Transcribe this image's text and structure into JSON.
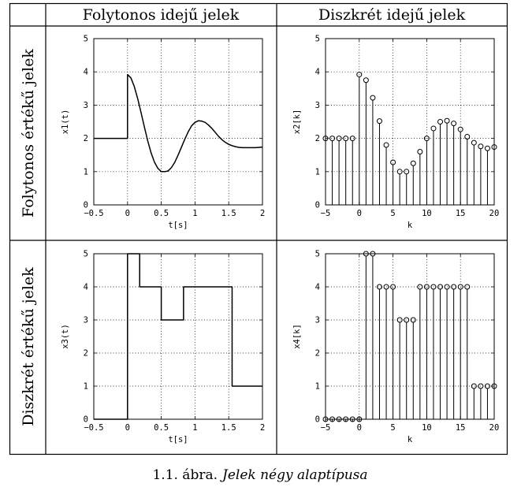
{
  "table": {
    "col_headers": [
      "Folytonos idejű jelek",
      "Diszkrét idejű jelek"
    ],
    "row_headers": [
      "Folytonos értékű jelek",
      "Diszkrét értékű jelek"
    ]
  },
  "caption": {
    "number": "1.1. ábra.",
    "text": "Jelek négy alaptípusa"
  },
  "chart_data": [
    {
      "type": "line",
      "xlabel": "t[s]",
      "ylabel": "x1(t)",
      "xlim": [
        -0.5,
        2
      ],
      "ylim": [
        0,
        5
      ],
      "xticks": [
        -0.5,
        0,
        0.5,
        1,
        1.5,
        2
      ],
      "xtick_labels": [
        "−0.5",
        "0",
        "0.5",
        "1",
        "1.5",
        "2"
      ],
      "yticks": [
        0,
        1,
        2,
        3,
        4,
        5
      ],
      "ytick_labels": [
        "0",
        "1",
        "2",
        "3",
        "4",
        "5"
      ],
      "grid": true,
      "series": [
        {
          "x": [
            -0.5,
            0,
            0,
            0.05,
            0.1,
            0.15,
            0.2,
            0.25,
            0.3,
            0.35,
            0.4,
            0.45,
            0.5,
            0.55,
            0.6,
            0.65,
            0.7,
            0.75,
            0.8,
            0.85,
            0.9,
            0.95,
            1.0,
            1.05,
            1.1,
            1.15,
            1.2,
            1.25,
            1.3,
            1.35,
            1.4,
            1.45,
            1.5,
            1.55,
            1.6,
            1.65,
            1.7,
            1.75,
            1.8,
            1.85,
            1.9,
            1.95,
            2.0
          ],
          "y": [
            2,
            2,
            3.92,
            3.82,
            3.56,
            3.2,
            2.78,
            2.34,
            1.92,
            1.56,
            1.28,
            1.1,
            1.0,
            1.0,
            1.02,
            1.12,
            1.28,
            1.5,
            1.74,
            1.98,
            2.2,
            2.38,
            2.48,
            2.53,
            2.52,
            2.48,
            2.4,
            2.3,
            2.18,
            2.06,
            1.96,
            1.88,
            1.82,
            1.78,
            1.75,
            1.73,
            1.72,
            1.72,
            1.72,
            1.72,
            1.72,
            1.73,
            1.74
          ]
        }
      ]
    },
    {
      "type": "stem",
      "xlabel": "k",
      "ylabel": "x2[k]",
      "xlim": [
        -5,
        20
      ],
      "ylim": [
        0,
        5
      ],
      "xticks": [
        -5,
        0,
        5,
        10,
        15,
        20
      ],
      "xtick_labels": [
        "−5",
        "0",
        "5",
        "10",
        "15",
        "20"
      ],
      "yticks": [
        0,
        1,
        2,
        3,
        4,
        5
      ],
      "ytick_labels": [
        "0",
        "1",
        "2",
        "3",
        "4",
        "5"
      ],
      "grid": true,
      "series": [
        {
          "x": [
            -5,
            -4,
            -3,
            -2,
            -1,
            0,
            1,
            2,
            3,
            4,
            5,
            6,
            7,
            8,
            9,
            10,
            11,
            12,
            13,
            14,
            15,
            16,
            17,
            18,
            19,
            20
          ],
          "y": [
            2,
            2,
            2,
            2,
            2,
            3.92,
            3.75,
            3.22,
            2.52,
            1.8,
            1.28,
            1.0,
            1.0,
            1.25,
            1.6,
            2.0,
            2.3,
            2.5,
            2.53,
            2.45,
            2.27,
            2.05,
            1.87,
            1.76,
            1.7,
            1.74
          ]
        }
      ]
    },
    {
      "type": "line",
      "xlabel": "t[s]",
      "ylabel": "x3(t)",
      "xlim": [
        -0.5,
        2
      ],
      "ylim": [
        0,
        5
      ],
      "xticks": [
        -0.5,
        0,
        0.5,
        1,
        1.5,
        2
      ],
      "xtick_labels": [
        "−0.5",
        "0",
        "0.5",
        "1",
        "1.5",
        "2"
      ],
      "yticks": [
        0,
        1,
        2,
        3,
        4,
        5
      ],
      "ytick_labels": [
        "0",
        "1",
        "2",
        "3",
        "4",
        "5"
      ],
      "grid": true,
      "series": [
        {
          "x": [
            -0.5,
            0,
            0,
            0.18,
            0.18,
            0.5,
            0.5,
            0.83,
            0.83,
            1.55,
            1.55,
            2.0
          ],
          "y": [
            0,
            0,
            5,
            5,
            4,
            4,
            3,
            3,
            4,
            4,
            1,
            1
          ]
        }
      ]
    },
    {
      "type": "stem",
      "xlabel": "k",
      "ylabel": "x4[k]",
      "xlim": [
        -5,
        20
      ],
      "ylim": [
        0,
        5
      ],
      "xticks": [
        -5,
        0,
        5,
        10,
        15,
        20
      ],
      "xtick_labels": [
        "−5",
        "0",
        "5",
        "10",
        "15",
        "20"
      ],
      "yticks": [
        0,
        1,
        2,
        3,
        4,
        5
      ],
      "ytick_labels": [
        "0",
        "1",
        "2",
        "3",
        "4",
        "5"
      ],
      "grid": true,
      "series": [
        {
          "x": [
            -5,
            -4,
            -3,
            -2,
            -1,
            0,
            1,
            2,
            3,
            4,
            5,
            6,
            7,
            8,
            9,
            10,
            11,
            12,
            13,
            14,
            15,
            16,
            17,
            18,
            19,
            20
          ],
          "y": [
            0,
            0,
            0,
            0,
            0,
            0,
            5,
            5,
            4,
            4,
            4,
            3,
            3,
            3,
            4,
            4,
            4,
            4,
            4,
            4,
            4,
            4,
            1,
            1,
            1,
            1
          ]
        }
      ]
    }
  ]
}
